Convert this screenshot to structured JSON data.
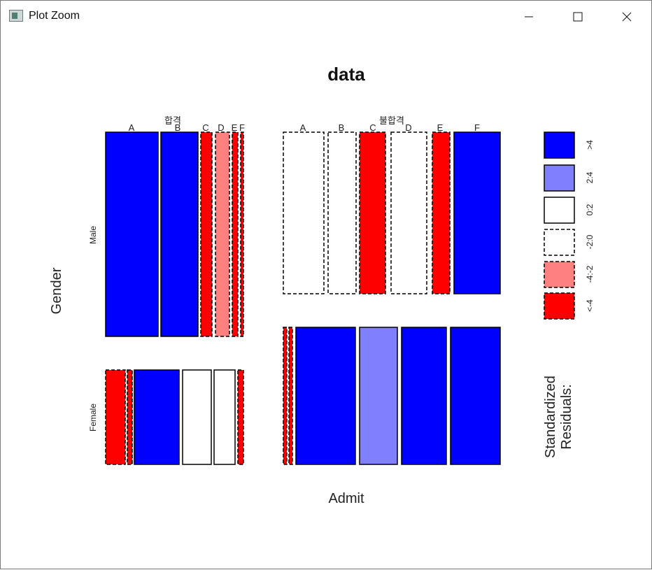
{
  "window": {
    "title": "Plot Zoom",
    "controls": {
      "minimize": "minimize-icon",
      "maximize": "maximize-icon",
      "close": "close-icon"
    }
  },
  "plot": {
    "title": "data",
    "xlabel": "Admit",
    "ylabel": "Gender",
    "admit_levels": [
      "합격",
      "불합격"
    ],
    "gender_levels": [
      "Male",
      "Female"
    ],
    "legend_title": "Standardized\nResiduals:",
    "legend": [
      {
        "label": ">4",
        "fill": "#0000ff",
        "dashed": false
      },
      {
        "label": "2:4",
        "fill": "#8080ff",
        "dashed": false
      },
      {
        "label": "0:2",
        "fill": "#ffffff",
        "dashed": false
      },
      {
        "label": "-2:0",
        "fill": "#ffffff",
        "dashed": true
      },
      {
        "label": "-4:-2",
        "fill": "#ff8080",
        "dashed": true
      },
      {
        "label": "<-4",
        "fill": "#ff0000",
        "dashed": true
      }
    ]
  },
  "chart_data": {
    "type": "mosaic",
    "title": "data",
    "xlabel": "Admit",
    "ylabel": "Gender",
    "dept_labels": {
      "합격": [
        "A",
        "B",
        "C",
        "D",
        "E",
        "F"
      ],
      "불합격": [
        "A",
        "B",
        "C",
        "D",
        "E",
        "F"
      ]
    },
    "cells": [
      {
        "admit": "합격",
        "gender": "Male",
        "dept": "A",
        "fill": "#0000ff",
        "dashed": false
      },
      {
        "admit": "합격",
        "gender": "Male",
        "dept": "B",
        "fill": "#0000ff",
        "dashed": false
      },
      {
        "admit": "합격",
        "gender": "Male",
        "dept": "C",
        "fill": "#ff0000",
        "dashed": true
      },
      {
        "admit": "합격",
        "gender": "Male",
        "dept": "D",
        "fill": "#ff8080",
        "dashed": true
      },
      {
        "admit": "합격",
        "gender": "Male",
        "dept": "E",
        "fill": "#ff0000",
        "dashed": true
      },
      {
        "admit": "합격",
        "gender": "Male",
        "dept": "F",
        "fill": "#ff0000",
        "dashed": true
      },
      {
        "admit": "불합격",
        "gender": "Male",
        "dept": "A",
        "fill": "#ffffff",
        "dashed": true
      },
      {
        "admit": "불합격",
        "gender": "Male",
        "dept": "B",
        "fill": "#ffffff",
        "dashed": true
      },
      {
        "admit": "불합격",
        "gender": "Male",
        "dept": "C",
        "fill": "#ff0000",
        "dashed": true
      },
      {
        "admit": "불합격",
        "gender": "Male",
        "dept": "D",
        "fill": "#ffffff",
        "dashed": true
      },
      {
        "admit": "불합격",
        "gender": "Male",
        "dept": "E",
        "fill": "#ff0000",
        "dashed": true
      },
      {
        "admit": "불합격",
        "gender": "Male",
        "dept": "F",
        "fill": "#0000ff",
        "dashed": false
      },
      {
        "admit": "합격",
        "gender": "Female",
        "dept": "A",
        "fill": "#ff0000",
        "dashed": true
      },
      {
        "admit": "합격",
        "gender": "Female",
        "dept": "B",
        "fill": "#ff0000",
        "dashed": true
      },
      {
        "admit": "합격",
        "gender": "Female",
        "dept": "C",
        "fill": "#0000ff",
        "dashed": false
      },
      {
        "admit": "합격",
        "gender": "Female",
        "dept": "D",
        "fill": "#ffffff",
        "dashed": false
      },
      {
        "admit": "합격",
        "gender": "Female",
        "dept": "E",
        "fill": "#ffffff",
        "dashed": false
      },
      {
        "admit": "합격",
        "gender": "Female",
        "dept": "F",
        "fill": "#ff0000",
        "dashed": true
      },
      {
        "admit": "불합격",
        "gender": "Female",
        "dept": "A",
        "fill": "#ff0000",
        "dashed": true
      },
      {
        "admit": "불합격",
        "gender": "Female",
        "dept": "B",
        "fill": "#ff0000",
        "dashed": true
      },
      {
        "admit": "불합격",
        "gender": "Female",
        "dept": "C",
        "fill": "#0000ff",
        "dashed": false
      },
      {
        "admit": "불합격",
        "gender": "Female",
        "dept": "D",
        "fill": "#8080ff",
        "dashed": false
      },
      {
        "admit": "불합격",
        "gender": "Female",
        "dept": "E",
        "fill": "#0000ff",
        "dashed": false
      },
      {
        "admit": "불합격",
        "gender": "Female",
        "dept": "F",
        "fill": "#0000ff",
        "dashed": false
      }
    ]
  }
}
